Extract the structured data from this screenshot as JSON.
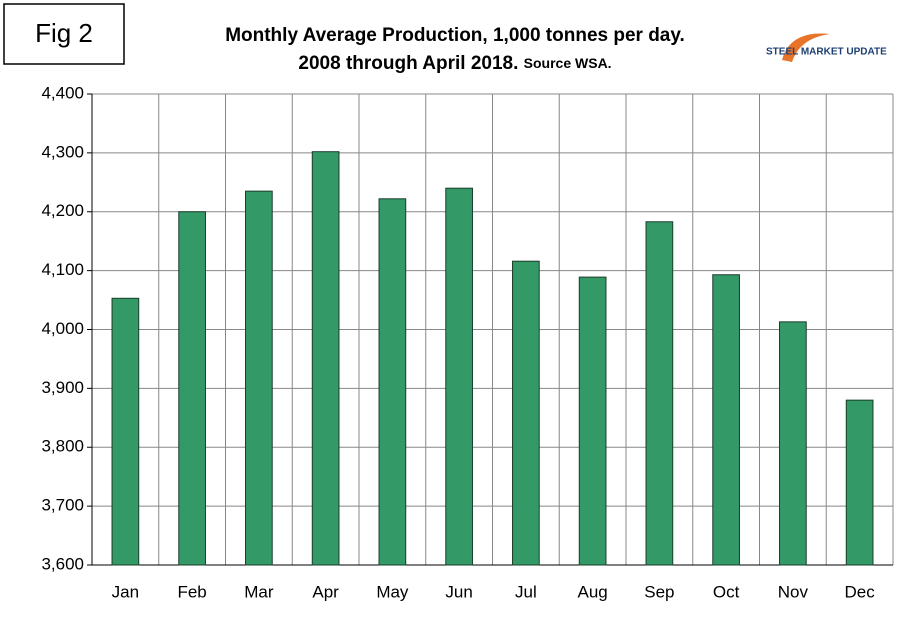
{
  "chart_data": {
    "type": "bar",
    "fig_label": "Fig 2",
    "title": "Monthly Average Production, 1,000 tonnes per day.",
    "subtitle": "2008 through April 2018.",
    "source": "Source WSA.",
    "logo": "STEEL MARKET UPDATE",
    "categories": [
      "Jan",
      "Feb",
      "Mar",
      "Apr",
      "May",
      "Jun",
      "Jul",
      "Aug",
      "Sep",
      "Oct",
      "Nov",
      "Dec"
    ],
    "values": [
      4053,
      4200,
      4235,
      4302,
      4222,
      4240,
      4116,
      4089,
      4183,
      4093,
      4013,
      3880
    ],
    "color": "#339966",
    "ylim": [
      3600,
      4400
    ],
    "yticks": [
      {
        "value": 3600,
        "label": "3,600"
      },
      {
        "value": 3700,
        "label": "3,700"
      },
      {
        "value": 3800,
        "label": "3,800"
      },
      {
        "value": 3900,
        "label": "3,900"
      },
      {
        "value": 4000,
        "label": "4,000"
      },
      {
        "value": 4100,
        "label": "4,100"
      },
      {
        "value": 4200,
        "label": "4,200"
      },
      {
        "value": 4300,
        "label": "4,300"
      },
      {
        "value": 4400,
        "label": "4,400"
      }
    ],
    "grid": true
  }
}
